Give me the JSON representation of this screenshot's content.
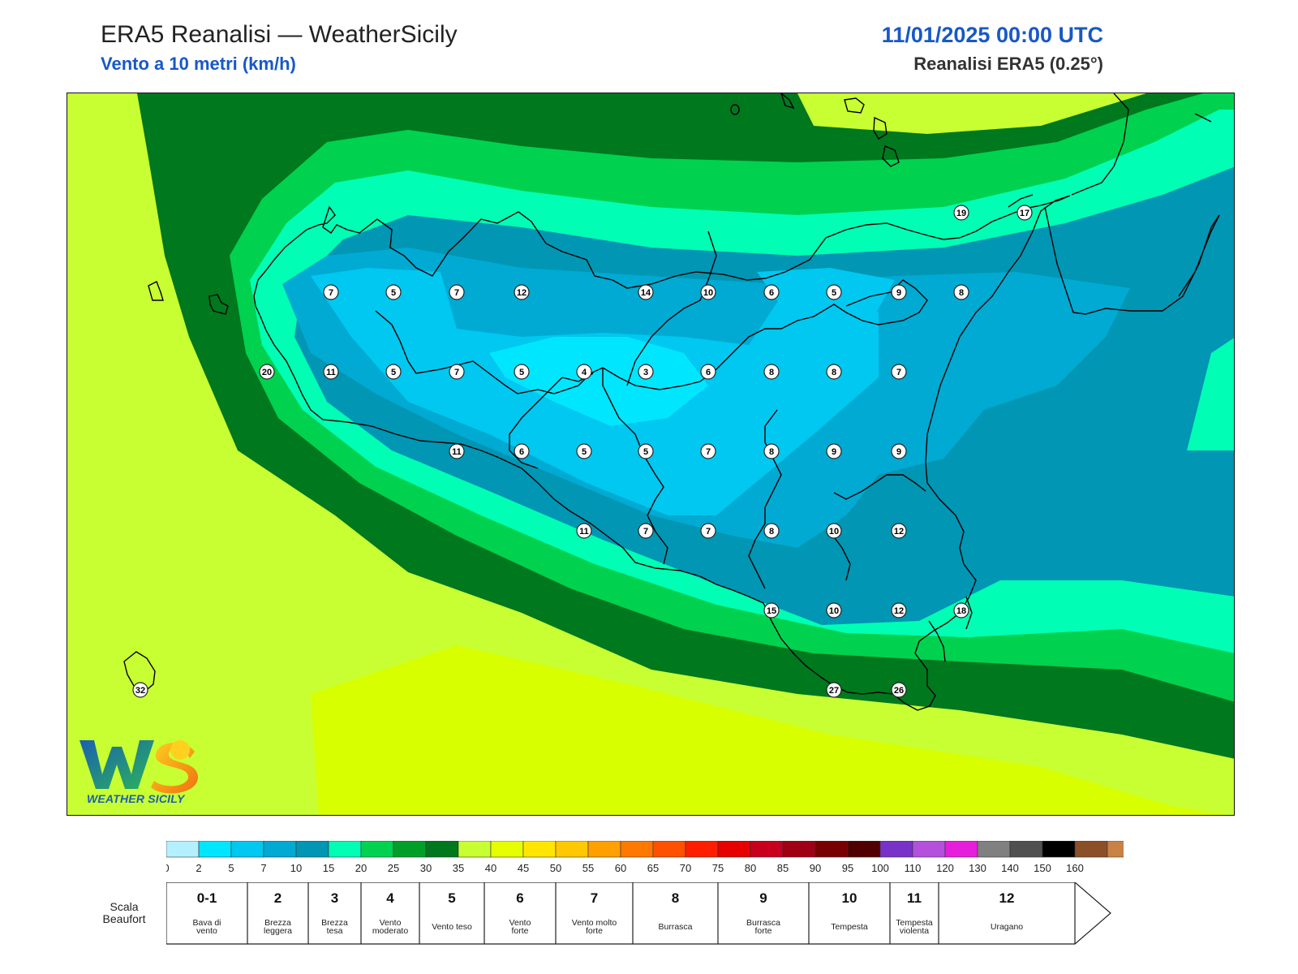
{
  "header": {
    "title": "ERA5 Reanalisi — WeatherSicily",
    "subtitle": "Vento a 10 metri (km/h)",
    "datetime": "11/01/2025 00:00 UTC",
    "source": "Reanalisi ERA5 (0.25°)"
  },
  "map": {
    "variable": "wind speed 10 m",
    "units": "km/h",
    "station_values": [
      {
        "v": "7"
      },
      {
        "v": "5"
      },
      {
        "v": "7"
      },
      {
        "v": "12"
      },
      {
        "v": "14"
      },
      {
        "v": "10"
      },
      {
        "v": "6"
      },
      {
        "v": "5"
      },
      {
        "v": "9"
      },
      {
        "v": "8"
      },
      {
        "v": "20"
      },
      {
        "v": "11"
      },
      {
        "v": "5"
      },
      {
        "v": "7"
      },
      {
        "v": "5"
      },
      {
        "v": "4"
      },
      {
        "v": "3"
      },
      {
        "v": "6"
      },
      {
        "v": "8"
      },
      {
        "v": "8"
      },
      {
        "v": "7"
      },
      {
        "v": "11"
      },
      {
        "v": "6"
      },
      {
        "v": "5"
      },
      {
        "v": "5"
      },
      {
        "v": "7"
      },
      {
        "v": "8"
      },
      {
        "v": "9"
      },
      {
        "v": "9"
      },
      {
        "v": "11"
      },
      {
        "v": "7"
      },
      {
        "v": "7"
      },
      {
        "v": "8"
      },
      {
        "v": "10"
      },
      {
        "v": "12"
      },
      {
        "v": "15"
      },
      {
        "v": "10"
      },
      {
        "v": "12"
      },
      {
        "v": "18"
      },
      {
        "v": "27"
      },
      {
        "v": "26"
      },
      {
        "v": "19"
      },
      {
        "v": "17"
      },
      {
        "v": "32"
      }
    ]
  },
  "colorbar": {
    "ticks": [
      "0",
      "2",
      "5",
      "7",
      "10",
      "15",
      "20",
      "25",
      "30",
      "35",
      "40",
      "45",
      "50",
      "55",
      "60",
      "65",
      "70",
      "75",
      "80",
      "85",
      "90",
      "95",
      "100",
      "110",
      "120",
      "130",
      "140",
      "150",
      "160"
    ],
    "colors": [
      "#b4f0ff",
      "#00e6ff",
      "#00c8f0",
      "#00aad2",
      "#0096b4",
      "#00ffb4",
      "#00d250",
      "#00a028",
      "#00781e",
      "#c8ff32",
      "#e6ff00",
      "#ffe600",
      "#ffc800",
      "#ffa000",
      "#ff7800",
      "#ff5000",
      "#ff1e00",
      "#e60000",
      "#c8001e",
      "#a00014",
      "#780000",
      "#500000",
      "#7832c8",
      "#b450dc",
      "#e61edc",
      "#808080",
      "#505050",
      "#000000",
      "#8c5028",
      "#c88246"
    ],
    "arrow_color": "#c88246"
  },
  "beaufort": {
    "label": "Scala\nBeaufort",
    "classes": [
      {
        "force": "0-1",
        "name": "Bava di\nvento"
      },
      {
        "force": "2",
        "name": "Brezza\nleggera"
      },
      {
        "force": "3",
        "name": "Brezza\ntesa"
      },
      {
        "force": "4",
        "name": "Vento\nmoderato"
      },
      {
        "force": "5",
        "name": "Vento teso"
      },
      {
        "force": "6",
        "name": "Vento\nforte"
      },
      {
        "force": "7",
        "name": "Vento molto\nforte"
      },
      {
        "force": "8",
        "name": "Burrasca"
      },
      {
        "force": "9",
        "name": "Burrasca\nforte"
      },
      {
        "force": "10",
        "name": "Tempesta"
      },
      {
        "force": "11",
        "name": "Tempesta\nviolenta"
      },
      {
        "force": "12",
        "name": "Uragano"
      }
    ]
  },
  "logo": {
    "letters": "WS",
    "text": "WEATHER SICILY"
  }
}
